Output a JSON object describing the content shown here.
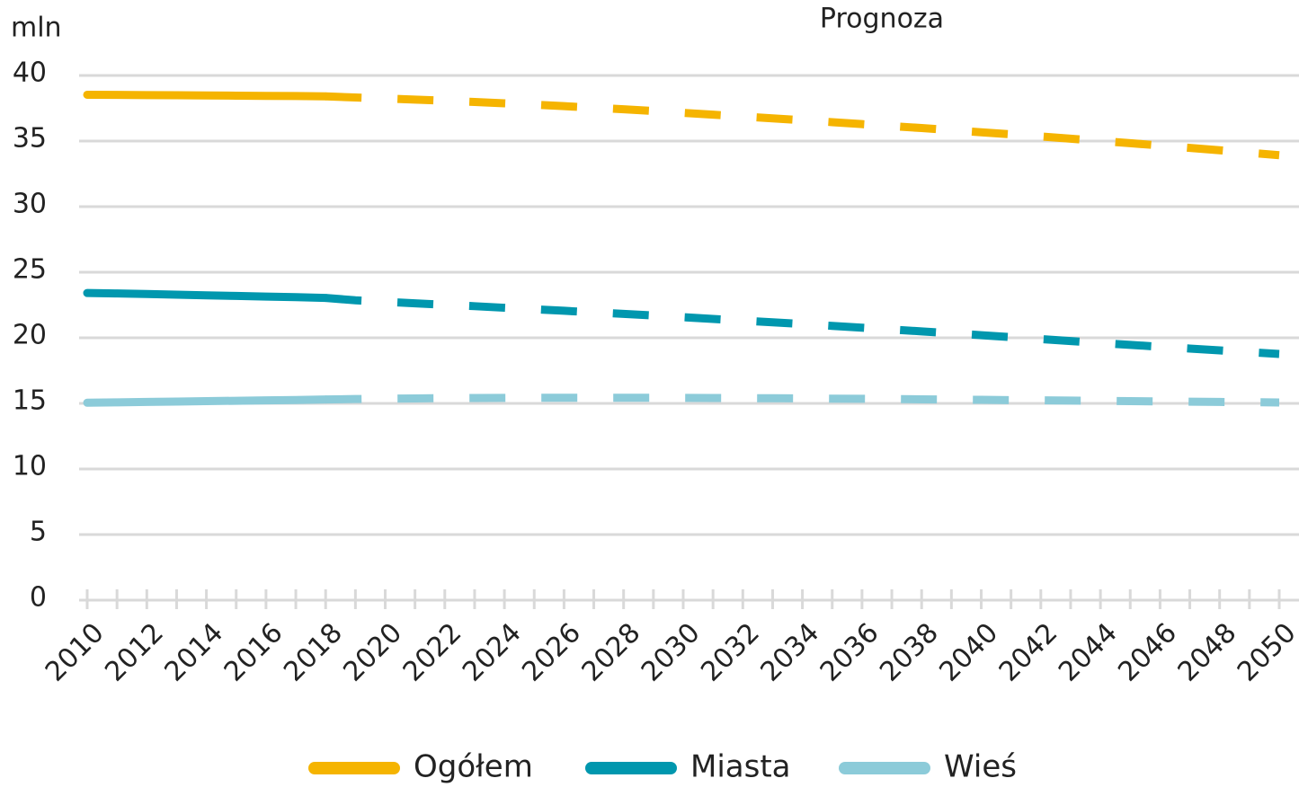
{
  "chart_data": {
    "type": "line",
    "y_unit": "mln",
    "annotation": "Prognoza",
    "dashed_from": 2018,
    "x": [
      2010,
      2011,
      2012,
      2013,
      2014,
      2015,
      2016,
      2017,
      2018,
      2019,
      2020,
      2021,
      2022,
      2023,
      2024,
      2025,
      2026,
      2027,
      2028,
      2029,
      2030,
      2031,
      2032,
      2033,
      2034,
      2035,
      2036,
      2037,
      2038,
      2039,
      2040,
      2041,
      2042,
      2043,
      2044,
      2045,
      2046,
      2047,
      2048,
      2049,
      2050
    ],
    "series": [
      {
        "name": "Ogółem",
        "color": "#f5b400",
        "values": [
          38.53,
          38.52,
          38.5,
          38.49,
          38.48,
          38.46,
          38.44,
          38.43,
          38.41,
          38.32,
          38.24,
          38.16,
          38.07,
          37.98,
          37.88,
          37.78,
          37.66,
          37.54,
          37.42,
          37.29,
          37.15,
          37.01,
          36.87,
          36.73,
          36.59,
          36.44,
          36.29,
          36.14,
          35.99,
          35.83,
          35.67,
          35.51,
          35.35,
          35.18,
          35.01,
          34.84,
          34.66,
          34.48,
          34.3,
          34.11,
          33.92
        ]
      },
      {
        "name": "Miasta",
        "color": "#0097ae",
        "values": [
          23.42,
          23.38,
          23.34,
          23.29,
          23.24,
          23.19,
          23.14,
          23.1,
          23.04,
          22.86,
          22.74,
          22.63,
          22.52,
          22.41,
          22.29,
          22.18,
          22.06,
          21.94,
          21.82,
          21.7,
          21.57,
          21.44,
          21.31,
          21.18,
          21.05,
          20.91,
          20.77,
          20.63,
          20.49,
          20.35,
          20.2,
          20.05,
          19.9,
          19.75,
          19.6,
          19.46,
          19.32,
          19.18,
          19.04,
          18.9,
          18.77
        ]
      },
      {
        "name": "Wieś",
        "color": "#8ccbd9",
        "values": [
          15.05,
          15.08,
          15.11,
          15.14,
          15.17,
          15.2,
          15.23,
          15.26,
          15.3,
          15.33,
          15.36,
          15.38,
          15.4,
          15.41,
          15.42,
          15.43,
          15.43,
          15.43,
          15.43,
          15.43,
          15.42,
          15.41,
          15.4,
          15.39,
          15.38,
          15.36,
          15.35,
          15.33,
          15.31,
          15.29,
          15.27,
          15.25,
          15.23,
          15.21,
          15.19,
          15.17,
          15.15,
          15.13,
          15.11,
          15.09,
          15.07
        ]
      }
    ],
    "xlim": [
      2010,
      2050
    ],
    "xticks": [
      2010,
      2012,
      2014,
      2016,
      2018,
      2020,
      2022,
      2024,
      2026,
      2028,
      2030,
      2032,
      2034,
      2036,
      2038,
      2040,
      2042,
      2044,
      2046,
      2048,
      2050
    ],
    "ylim": [
      0,
      40
    ],
    "yticks": [
      0,
      5,
      10,
      15,
      20,
      25,
      30,
      35,
      40
    ],
    "grid": true,
    "legend": "bottom"
  }
}
